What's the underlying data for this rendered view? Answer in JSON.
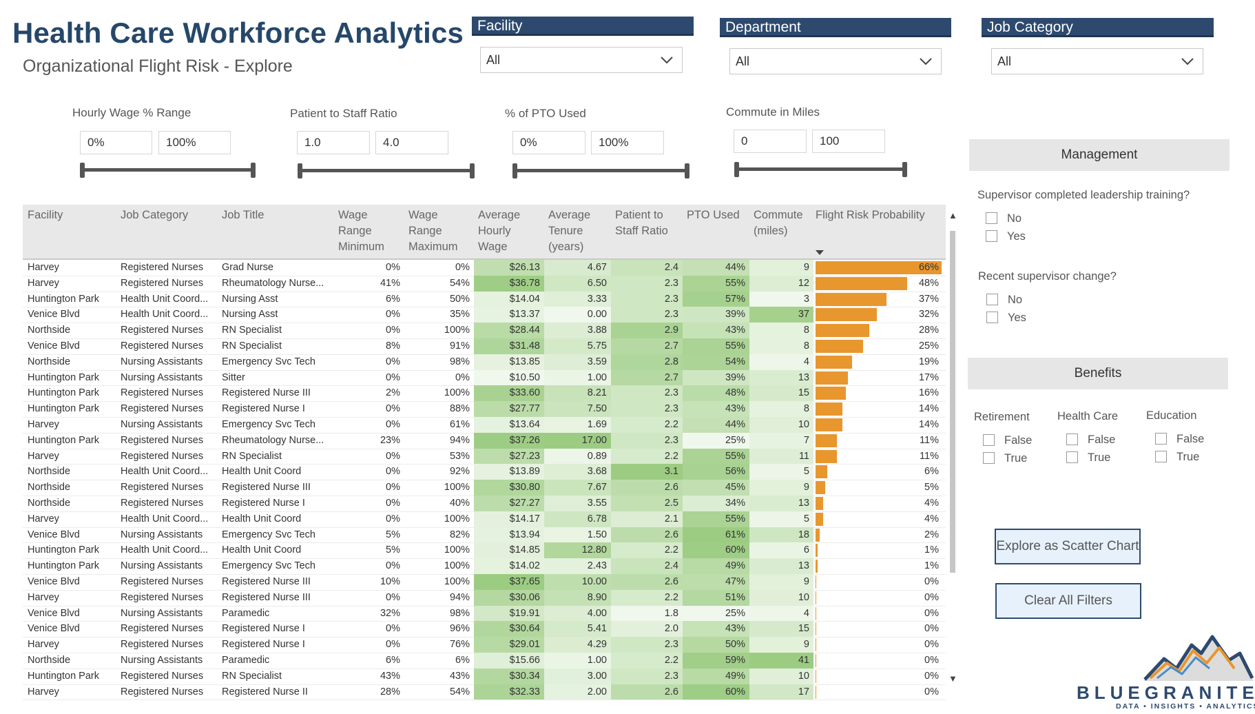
{
  "header": {
    "title": "Health Care Workforce Analytics",
    "subtitle": "Organizational Flight Risk - Explore"
  },
  "slicers": [
    {
      "label": "Facility",
      "value": "All"
    },
    {
      "label": "Department",
      "value": "All"
    },
    {
      "label": "Job Category",
      "value": "All"
    }
  ],
  "ranges": [
    {
      "label": "Hourly Wage % Range",
      "min": "0%",
      "max": "100%"
    },
    {
      "label": "Patient to Staff Ratio",
      "min": "1.0",
      "max": "4.0"
    },
    {
      "label": "% of PTO Used",
      "min": "0%",
      "max": "100%"
    },
    {
      "label": "Commute in Miles",
      "min": "0",
      "max": "100"
    }
  ],
  "table": {
    "columns": [
      "Facility",
      "Job Category",
      "Job Title",
      "Wage Range Minimum",
      "Wage Range Maximum",
      "Average Hourly Wage",
      "Average Tenure (years)",
      "Patient to Staff Ratio",
      "PTO Used",
      "Commute (miles)",
      "Flight Risk Probability"
    ],
    "rows": [
      [
        "Harvey",
        "Registered Nurses",
        "Grad Nurse",
        "0%",
        "0%",
        "$26.13",
        "4.67",
        "2.4",
        "44%",
        "9",
        "66%"
      ],
      [
        "Harvey",
        "Registered Nurses",
        "Rheumatology Nurse...",
        "41%",
        "54%",
        "$36.78",
        "6.50",
        "2.3",
        "55%",
        "12",
        "48%"
      ],
      [
        "Huntington Park",
        "Health Unit Coord...",
        "Nursing Asst",
        "6%",
        "50%",
        "$14.04",
        "3.33",
        "2.3",
        "57%",
        "3",
        "37%"
      ],
      [
        "Venice Blvd",
        "Health Unit Coord...",
        "Nursing Asst",
        "0%",
        "35%",
        "$13.37",
        "0.00",
        "2.3",
        "39%",
        "37",
        "32%"
      ],
      [
        "Northside",
        "Registered Nurses",
        "RN Specialist",
        "0%",
        "100%",
        "$28.44",
        "3.88",
        "2.9",
        "43%",
        "8",
        "28%"
      ],
      [
        "Venice Blvd",
        "Registered Nurses",
        "RN Specialist",
        "8%",
        "91%",
        "$31.48",
        "5.75",
        "2.7",
        "55%",
        "8",
        "25%"
      ],
      [
        "Northside",
        "Nursing Assistants",
        "Emergency Svc Tech",
        "0%",
        "98%",
        "$13.85",
        "3.59",
        "2.8",
        "54%",
        "4",
        "19%"
      ],
      [
        "Huntington Park",
        "Nursing Assistants",
        "Sitter",
        "0%",
        "0%",
        "$10.50",
        "1.00",
        "2.7",
        "39%",
        "13",
        "17%"
      ],
      [
        "Huntington Park",
        "Registered Nurses",
        "Registered Nurse III",
        "2%",
        "100%",
        "$33.60",
        "8.21",
        "2.3",
        "48%",
        "15",
        "16%"
      ],
      [
        "Huntington Park",
        "Registered Nurses",
        "Registered Nurse I",
        "0%",
        "88%",
        "$27.77",
        "7.50",
        "2.3",
        "43%",
        "8",
        "14%"
      ],
      [
        "Harvey",
        "Nursing Assistants",
        "Emergency Svc Tech",
        "0%",
        "61%",
        "$13.64",
        "1.69",
        "2.2",
        "44%",
        "10",
        "14%"
      ],
      [
        "Huntington Park",
        "Registered Nurses",
        "Rheumatology Nurse...",
        "23%",
        "94%",
        "$37.26",
        "17.00",
        "2.3",
        "25%",
        "7",
        "11%"
      ],
      [
        "Harvey",
        "Registered Nurses",
        "RN Specialist",
        "0%",
        "53%",
        "$27.23",
        "0.89",
        "2.2",
        "55%",
        "11",
        "11%"
      ],
      [
        "Northside",
        "Health Unit Coord...",
        "Health Unit Coord",
        "0%",
        "92%",
        "$13.89",
        "3.68",
        "3.1",
        "56%",
        "5",
        "6%"
      ],
      [
        "Northside",
        "Registered Nurses",
        "Registered Nurse III",
        "0%",
        "100%",
        "$30.80",
        "7.67",
        "2.6",
        "45%",
        "9",
        "5%"
      ],
      [
        "Northside",
        "Registered Nurses",
        "Registered Nurse I",
        "0%",
        "40%",
        "$27.27",
        "3.55",
        "2.5",
        "34%",
        "13",
        "4%"
      ],
      [
        "Harvey",
        "Health Unit Coord...",
        "Health Unit Coord",
        "0%",
        "100%",
        "$14.17",
        "6.78",
        "2.1",
        "55%",
        "5",
        "4%"
      ],
      [
        "Venice Blvd",
        "Nursing Assistants",
        "Emergency Svc Tech",
        "5%",
        "82%",
        "$13.94",
        "1.50",
        "2.6",
        "61%",
        "18",
        "2%"
      ],
      [
        "Huntington Park",
        "Health Unit Coord...",
        "Health Unit Coord",
        "5%",
        "100%",
        "$14.85",
        "12.80",
        "2.2",
        "60%",
        "6",
        "1%"
      ],
      [
        "Huntington Park",
        "Nursing Assistants",
        "Emergency Svc Tech",
        "0%",
        "100%",
        "$14.02",
        "2.43",
        "2.4",
        "49%",
        "13",
        "1%"
      ],
      [
        "Venice Blvd",
        "Registered Nurses",
        "Registered Nurse III",
        "10%",
        "100%",
        "$37.65",
        "10.00",
        "2.6",
        "47%",
        "9",
        "0%"
      ],
      [
        "Harvey",
        "Registered Nurses",
        "Registered Nurse III",
        "0%",
        "94%",
        "$30.06",
        "8.90",
        "2.2",
        "51%",
        "10",
        "0%"
      ],
      [
        "Venice Blvd",
        "Nursing Assistants",
        "Paramedic",
        "32%",
        "98%",
        "$19.91",
        "4.00",
        "1.8",
        "25%",
        "4",
        "0%"
      ],
      [
        "Venice Blvd",
        "Registered Nurses",
        "Registered Nurse I",
        "0%",
        "96%",
        "$30.64",
        "5.41",
        "2.0",
        "43%",
        "15",
        "0%"
      ],
      [
        "Harvey",
        "Registered Nurses",
        "Registered Nurse I",
        "0%",
        "76%",
        "$29.01",
        "4.29",
        "2.3",
        "50%",
        "9",
        "0%"
      ],
      [
        "Northside",
        "Nursing Assistants",
        "Paramedic",
        "6%",
        "6%",
        "$15.66",
        "1.00",
        "2.2",
        "59%",
        "41",
        "0%"
      ],
      [
        "Huntington Park",
        "Registered Nurses",
        "RN Specialist",
        "43%",
        "43%",
        "$30.34",
        "3.00",
        "2.3",
        "49%",
        "10",
        "0%"
      ],
      [
        "Harvey",
        "Registered Nurses",
        "Registered Nurse II",
        "28%",
        "54%",
        "$32.33",
        "2.00",
        "2.6",
        "60%",
        "17",
        "0%"
      ]
    ],
    "flight_risk_values": [
      0.66,
      0.48,
      0.37,
      0.32,
      0.28,
      0.25,
      0.19,
      0.17,
      0.16,
      0.14,
      0.14,
      0.11,
      0.11,
      0.06,
      0.05,
      0.04,
      0.04,
      0.02,
      0.01,
      0.01,
      0.002,
      0.002,
      0.002,
      0.002,
      0.002,
      0.002,
      0.002,
      0.002
    ],
    "bar_color": "#e8962e"
  },
  "management": {
    "title": "Management",
    "q1": "Supervisor completed leadership training?",
    "q1_options": [
      "No",
      "Yes"
    ],
    "q2": "Recent supervisor change?",
    "q2_options": [
      "No",
      "Yes"
    ]
  },
  "benefits": {
    "title": "Benefits",
    "groups": [
      {
        "label": "Retirement",
        "options": [
          "False",
          "True"
        ]
      },
      {
        "label": "Health Care",
        "options": [
          "False",
          "True"
        ]
      },
      {
        "label": "Education",
        "options": [
          "False",
          "True"
        ]
      }
    ]
  },
  "buttons": {
    "scatter": "Explore as Scatter Chart",
    "clear": "Clear All Filters"
  },
  "logo": {
    "name": "BLUEGRANITE",
    "tagline": "DATA • INSIGHTS • ANALYTICS"
  },
  "colors": {
    "brand_navy": "#2d4a6e",
    "green_max": "#a9d18e",
    "green_min": "#ffffff",
    "bar": "#e8962e"
  }
}
